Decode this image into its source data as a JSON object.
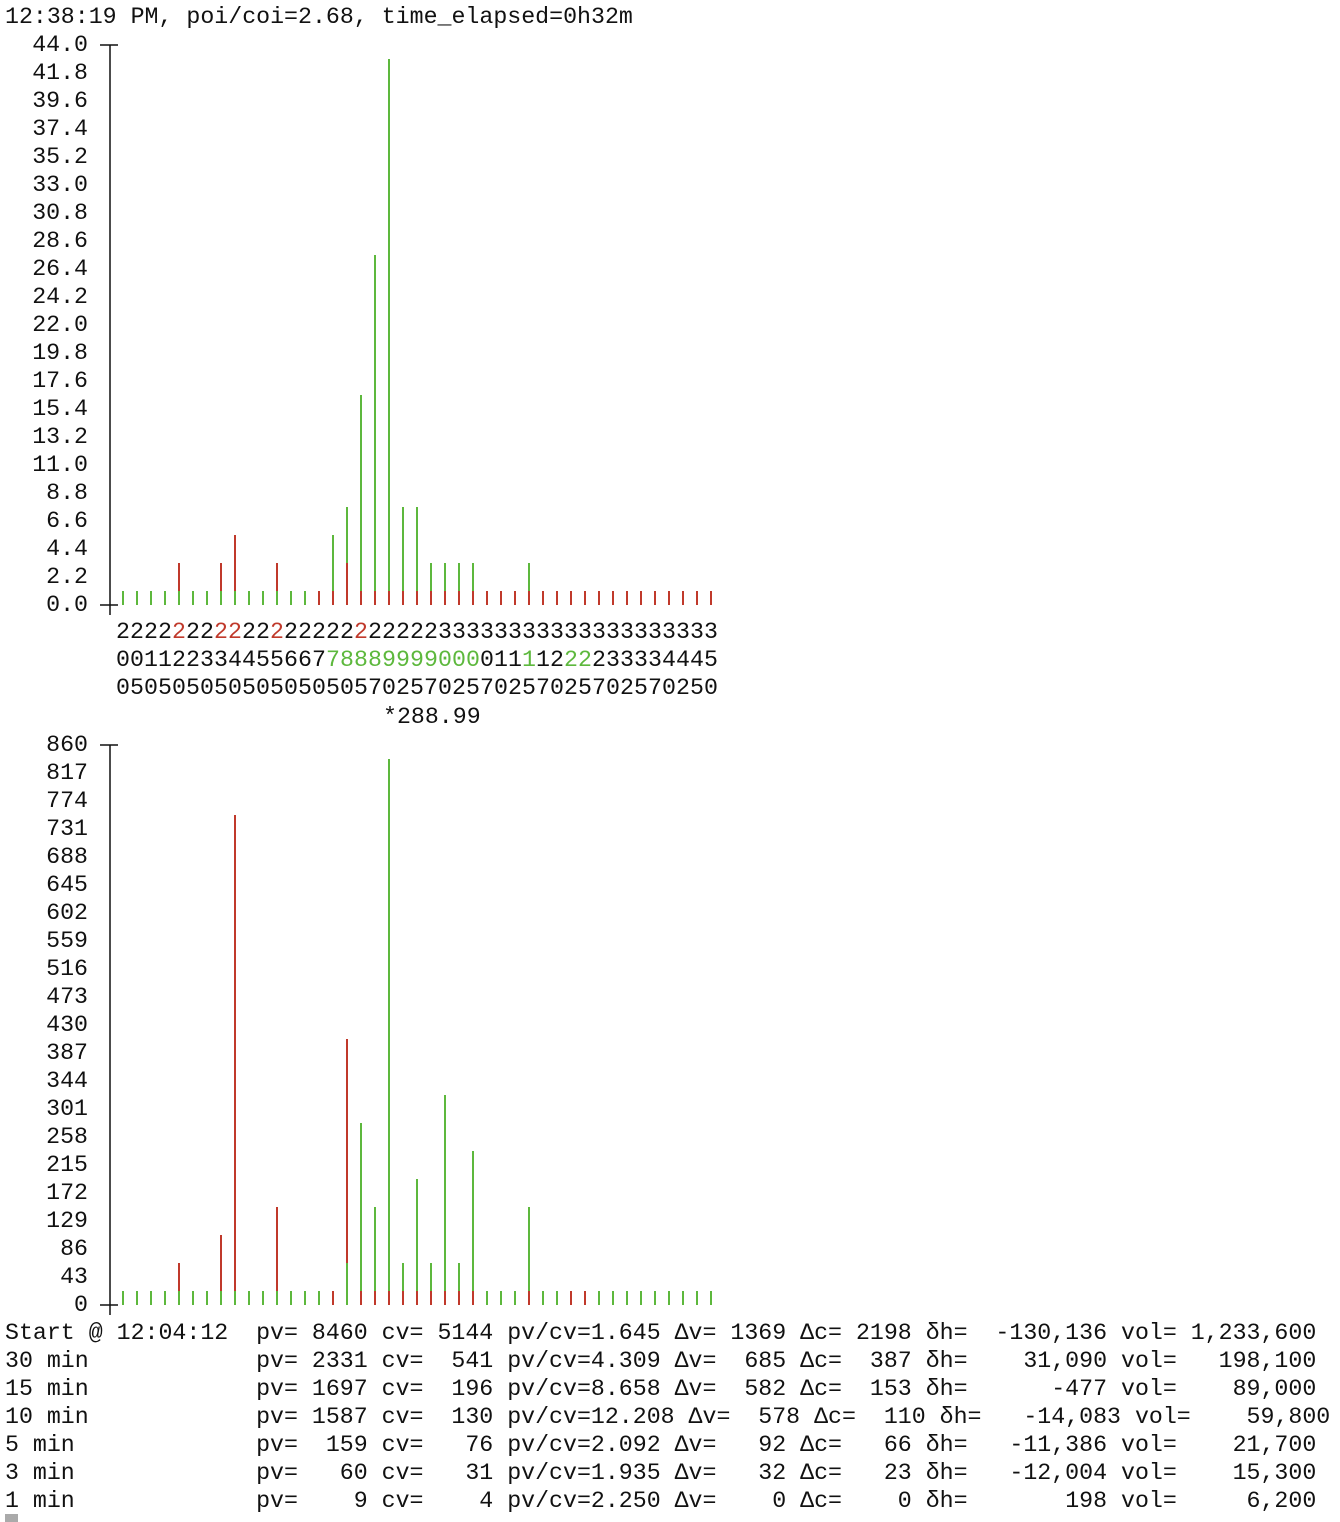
{
  "header": {
    "text": "12:38:19 PM, poi/coi=2.68, time_elapsed=0h32m"
  },
  "chart_data": [
    {
      "type": "bar",
      "stacked": true,
      "annotation": "*288.99",
      "ylim": [
        0,
        44
      ],
      "yticks": [
        {
          "value": 0,
          "label": "0.0"
        },
        2.2,
        4.4,
        6.6,
        8.8,
        {
          "value": 11,
          "label": "11.0"
        },
        13.2,
        15.4,
        17.6,
        19.8,
        {
          "value": 22,
          "label": "22.0"
        },
        24.2,
        26.4,
        28.6,
        30.8,
        {
          "value": 33,
          "label": "33.0"
        },
        35.2,
        37.4,
        39.6,
        41.8,
        {
          "value": 44,
          "label": "44.0"
        }
      ],
      "categories": [
        "200",
        "205",
        "210",
        "215",
        "220",
        "225",
        "230",
        "235",
        "240",
        "245",
        "250",
        "255",
        "260",
        "265",
        "270",
        "275",
        "280",
        "285",
        "287",
        "290",
        "292",
        "295",
        "297",
        "300",
        "302",
        "305",
        "307",
        "310",
        "312",
        "315",
        "317",
        "320",
        "322",
        "325",
        "327",
        "330",
        "332",
        "335",
        "337",
        "340",
        "342",
        "345",
        "350"
      ],
      "label_highlights": [
        {
          "row": 0,
          "color": "#c0392b",
          "columns": [
            4,
            7,
            8,
            11,
            17
          ]
        },
        {
          "row": 1,
          "color": "#5db83d",
          "columns": [
            15,
            16,
            17,
            18,
            19,
            20,
            21,
            22,
            23,
            24,
            25,
            29,
            32,
            33
          ]
        }
      ],
      "series": [
        {
          "values": [
            1.1,
            1.1,
            1.1,
            1.1,
            1.1,
            1.1,
            1.1,
            1.1,
            1.1,
            1.1,
            1.1,
            1.1,
            1.1,
            1.1,
            1.1,
            1.1,
            3.3,
            1.1,
            1.1,
            1.1,
            1.1,
            1.1,
            1.1,
            1.1,
            1.1,
            1.1,
            1.1,
            1.1,
            1.1,
            1.1,
            1.1,
            1.1,
            1.1,
            1.1,
            1.1,
            1.1,
            1.1,
            1.1,
            1.1,
            1.1,
            1.1,
            1.1,
            1.1
          ],
          "colors": [
            "#5db83d",
            "#5db83d",
            "#5db83d",
            "#5db83d",
            "#5db83d",
            "#5db83d",
            "#5db83d",
            "#5db83d",
            "#5db83d",
            "#5db83d",
            "#5db83d",
            "#5db83d",
            "#5db83d",
            "#5db83d",
            "#c0392b",
            "#c0392b",
            "#c0392b",
            "#c0392b",
            "#c0392b",
            "#c0392b",
            "#c0392b",
            "#c0392b",
            "#c0392b",
            "#c0392b",
            "#c0392b",
            "#c0392b",
            "#c0392b",
            "#c0392b",
            "#c0392b",
            "#c0392b",
            "#c0392b",
            "#c0392b",
            "#c0392b",
            "#c0392b",
            "#c0392b",
            "#c0392b",
            "#c0392b",
            "#c0392b",
            "#c0392b",
            "#c0392b",
            "#c0392b",
            "#c0392b",
            "#c0392b"
          ]
        },
        {
          "values": [
            0,
            0,
            0,
            0,
            2.2,
            0,
            0,
            2.2,
            4.4,
            0,
            0,
            2.2,
            0,
            0,
            0,
            4.4,
            4.4,
            15.4,
            26.4,
            41.8,
            6.6,
            6.6,
            2.2,
            2.2,
            2.2,
            2.2,
            0,
            0,
            0,
            2.2,
            0,
            0,
            0,
            0,
            0,
            0,
            0,
            0,
            0,
            0,
            0,
            0,
            0
          ],
          "colors": [
            "#5db83d",
            "#5db83d",
            "#5db83d",
            "#5db83d",
            "#c0392b",
            "#5db83d",
            "#5db83d",
            "#c0392b",
            "#c0392b",
            "#5db83d",
            "#5db83d",
            "#c0392b",
            "#5db83d",
            "#5db83d",
            "#5db83d",
            "#5db83d",
            "#5db83d",
            "#5db83d",
            "#5db83d",
            "#5db83d",
            "#5db83d",
            "#5db83d",
            "#5db83d",
            "#5db83d",
            "#5db83d",
            "#5db83d",
            "#5db83d",
            "#5db83d",
            "#5db83d",
            "#5db83d",
            "#5db83d",
            "#5db83d",
            "#5db83d",
            "#5db83d",
            "#5db83d",
            "#5db83d",
            "#5db83d",
            "#5db83d",
            "#5db83d",
            "#5db83d",
            "#5db83d",
            "#5db83d",
            "#5db83d"
          ]
        }
      ]
    },
    {
      "type": "bar",
      "stacked": true,
      "ylim": [
        0,
        860
      ],
      "yticks": [
        0,
        43,
        86,
        129,
        172,
        215,
        258,
        301,
        344,
        387,
        430,
        473,
        516,
        559,
        602,
        645,
        688,
        731,
        774,
        817,
        860
      ],
      "series": [
        {
          "values": [
            21.5,
            21.5,
            21.5,
            21.5,
            21.5,
            21.5,
            21.5,
            21.5,
            21.5,
            21.5,
            21.5,
            21.5,
            21.5,
            21.5,
            21.5,
            21.5,
            64.5,
            21.5,
            21.5,
            21.5,
            21.5,
            21.5,
            21.5,
            21.5,
            21.5,
            21.5,
            21.5,
            21.5,
            21.5,
            21.5,
            21.5,
            21.5,
            21.5,
            21.5,
            21.5,
            21.5,
            21.5,
            21.5,
            21.5,
            21.5,
            21.5,
            21.5,
            21.5
          ],
          "colors": [
            "#5db83d",
            "#5db83d",
            "#5db83d",
            "#5db83d",
            "#5db83d",
            "#5db83d",
            "#5db83d",
            "#5db83d",
            "#5db83d",
            "#5db83d",
            "#5db83d",
            "#5db83d",
            "#5db83d",
            "#5db83d",
            "#5db83d",
            "#c0392b",
            "#5db83d",
            "#c0392b",
            "#c0392b",
            "#c0392b",
            "#c0392b",
            "#c0392b",
            "#c0392b",
            "#c0392b",
            "#c0392b",
            "#c0392b",
            "#5db83d",
            "#5db83d",
            "#5db83d",
            "#c0392b",
            "#5db83d",
            "#5db83d",
            "#c0392b",
            "#c0392b",
            "#5db83d",
            "#5db83d",
            "#5db83d",
            "#5db83d",
            "#5db83d",
            "#5db83d",
            "#5db83d",
            "#5db83d",
            "#5db83d"
          ]
        },
        {
          "values": [
            0,
            0,
            0,
            0,
            43,
            0,
            0,
            86,
            731,
            0,
            0,
            129,
            0,
            0,
            0,
            0,
            344,
            258,
            129,
            817,
            43,
            172,
            43,
            301,
            43,
            215,
            0,
            0,
            0,
            129,
            0,
            0,
            0,
            0,
            0,
            0,
            0,
            0,
            0,
            0,
            0,
            0,
            0
          ],
          "colors": [
            "#5db83d",
            "#5db83d",
            "#5db83d",
            "#5db83d",
            "#c0392b",
            "#5db83d",
            "#5db83d",
            "#c0392b",
            "#c0392b",
            "#5db83d",
            "#5db83d",
            "#c0392b",
            "#5db83d",
            "#5db83d",
            "#5db83d",
            "#5db83d",
            "#c0392b",
            "#5db83d",
            "#5db83d",
            "#5db83d",
            "#5db83d",
            "#5db83d",
            "#5db83d",
            "#5db83d",
            "#5db83d",
            "#5db83d",
            "#5db83d",
            "#5db83d",
            "#5db83d",
            "#5db83d",
            "#5db83d",
            "#5db83d",
            "#5db83d",
            "#5db83d",
            "#5db83d",
            "#5db83d",
            "#5db83d",
            "#5db83d",
            "#5db83d",
            "#5db83d",
            "#5db83d",
            "#5db83d",
            "#5db83d"
          ]
        }
      ]
    }
  ],
  "table": {
    "keys": {
      "pv": "pv=",
      "cv": "cv=",
      "ratio": "pv/cv=",
      "dv": "Δv=",
      "dc": "Δc=",
      "dh": "δh=",
      "vol": "vol="
    },
    "rows": [
      {
        "label": "Start @ 12:04:12",
        "pv": "8460",
        "cv": "5144",
        "ratio": "1.645",
        "dv": "1369",
        "dc": "2198",
        "dh": "-130,136",
        "vol": "1,233,600"
      },
      {
        "label": "30 min",
        "pv": "2331",
        "cv": "541",
        "ratio": "4.309",
        "dv": "685",
        "dc": "387",
        "dh": "31,090",
        "vol": "198,100"
      },
      {
        "label": "15 min",
        "pv": "1697",
        "cv": "196",
        "ratio": "8.658",
        "dv": "582",
        "dc": "153",
        "dh": "-477",
        "vol": "89,000"
      },
      {
        "label": "10 min",
        "pv": "1587",
        "cv": "130",
        "ratio": "12.208",
        "dv": "578",
        "dc": "110",
        "dh": "-14,083",
        "vol": "59,800"
      },
      {
        "label": "5 min",
        "pv": "159",
        "cv": "76",
        "ratio": "2.092",
        "dv": "92",
        "dc": "66",
        "dh": "-11,386",
        "vol": "21,700"
      },
      {
        "label": "3 min",
        "pv": "60",
        "cv": "31",
        "ratio": "1.935",
        "dv": "32",
        "dc": "23",
        "dh": "-12,004",
        "vol": "15,300"
      },
      {
        "label": "1 min",
        "pv": "9",
        "cv": "4",
        "ratio": "2.250",
        "dv": "0",
        "dc": "0",
        "dh": "198",
        "vol": "6,200"
      }
    ]
  }
}
